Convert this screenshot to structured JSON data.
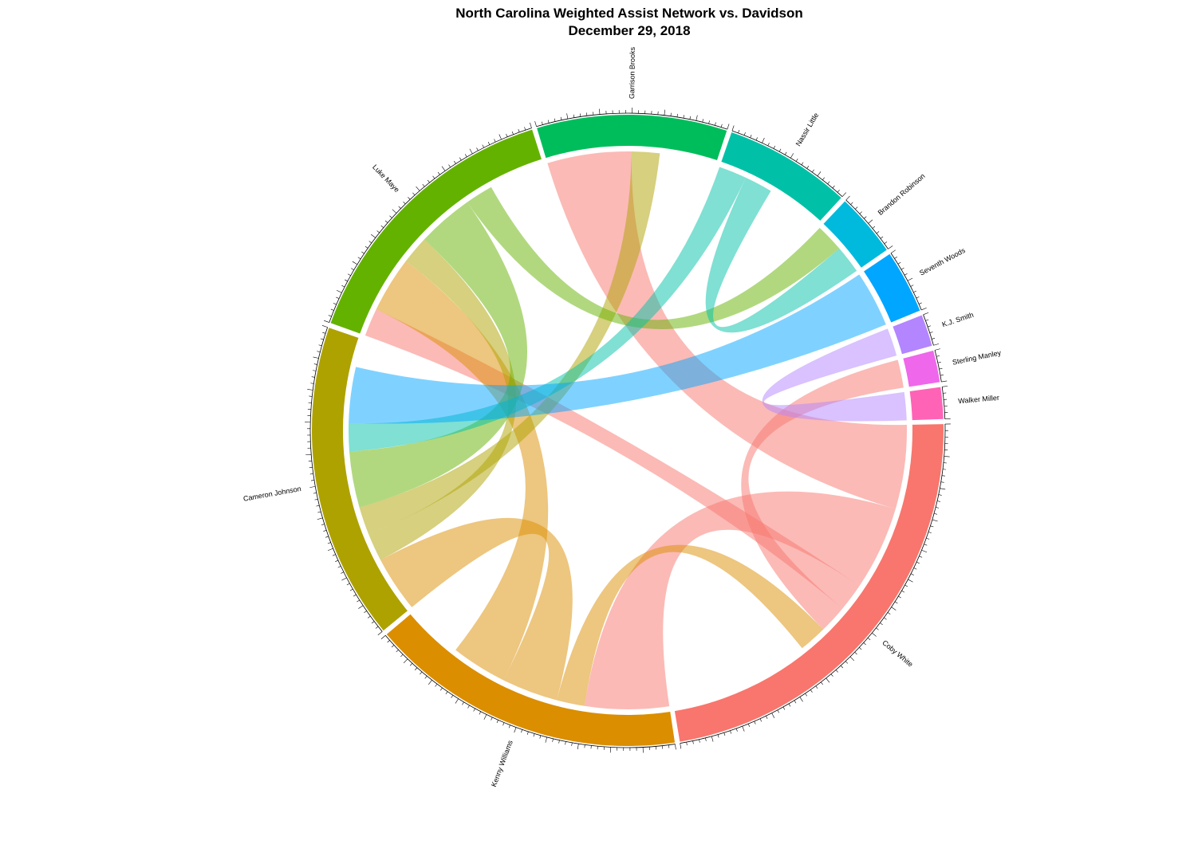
{
  "title": "North Carolina Weighted Assist Network vs. Davidson",
  "subtitle": "December 29, 2018",
  "chart_data": {
    "type": "chord",
    "sectors": [
      {
        "name": "Coby White",
        "value": 14,
        "color": "#F8766D"
      },
      {
        "name": "Kenny Williams",
        "value": 10,
        "color": "#DB8E00"
      },
      {
        "name": "Cameron Johnson",
        "value": 10,
        "color": "#AEA200"
      },
      {
        "name": "Luke Maye",
        "value": 9,
        "color": "#64B200"
      },
      {
        "name": "Garrison Brooks",
        "value": 6,
        "color": "#00BD5C"
      },
      {
        "name": "Nassir Little",
        "value": 4,
        "color": "#00C1A7"
      },
      {
        "name": "Brandon Robinson",
        "value": 2,
        "color": "#00BADE"
      },
      {
        "name": "Seventh Woods",
        "value": 2,
        "color": "#00A6FF"
      },
      {
        "name": "K.J. Smith",
        "value": 1,
        "color": "#B385FF"
      },
      {
        "name": "Sterling Manley",
        "value": 1,
        "color": "#EF67EB"
      },
      {
        "name": "Walker Miller",
        "value": 1,
        "color": "#FF63B6"
      }
    ],
    "links": [
      {
        "from": "Coby White",
        "to": "Garrison Brooks",
        "value": 3
      },
      {
        "from": "Coby White",
        "to": "Kenny Williams",
        "value": 3
      },
      {
        "from": "Coby White",
        "to": "Luke Maye",
        "value": 1
      },
      {
        "from": "Coby White",
        "to": "Sterling Manley",
        "value": 1
      },
      {
        "from": "Kenny Williams",
        "to": "Coby White",
        "value": 1
      },
      {
        "from": "Kenny Williams",
        "to": "Cameron Johnson",
        "value": 2
      },
      {
        "from": "Kenny Williams",
        "to": "Luke Maye",
        "value": 2
      },
      {
        "from": "Cameron Johnson",
        "to": "Luke Maye",
        "value": 1
      },
      {
        "from": "Cameron Johnson",
        "to": "Garrison Brooks",
        "value": 1
      },
      {
        "from": "Luke Maye",
        "to": "Cameron Johnson",
        "value": 2
      },
      {
        "from": "Luke Maye",
        "to": "Brandon Robinson",
        "value": 1
      },
      {
        "from": "Nassir Little",
        "to": "Cameron Johnson",
        "value": 1
      },
      {
        "from": "Nassir Little",
        "to": "Brandon Robinson",
        "value": 1
      },
      {
        "from": "Seventh Woods",
        "to": "Cameron Johnson",
        "value": 2
      },
      {
        "from": "K.J. Smith",
        "to": "Walker Miller",
        "value": 1
      }
    ]
  }
}
